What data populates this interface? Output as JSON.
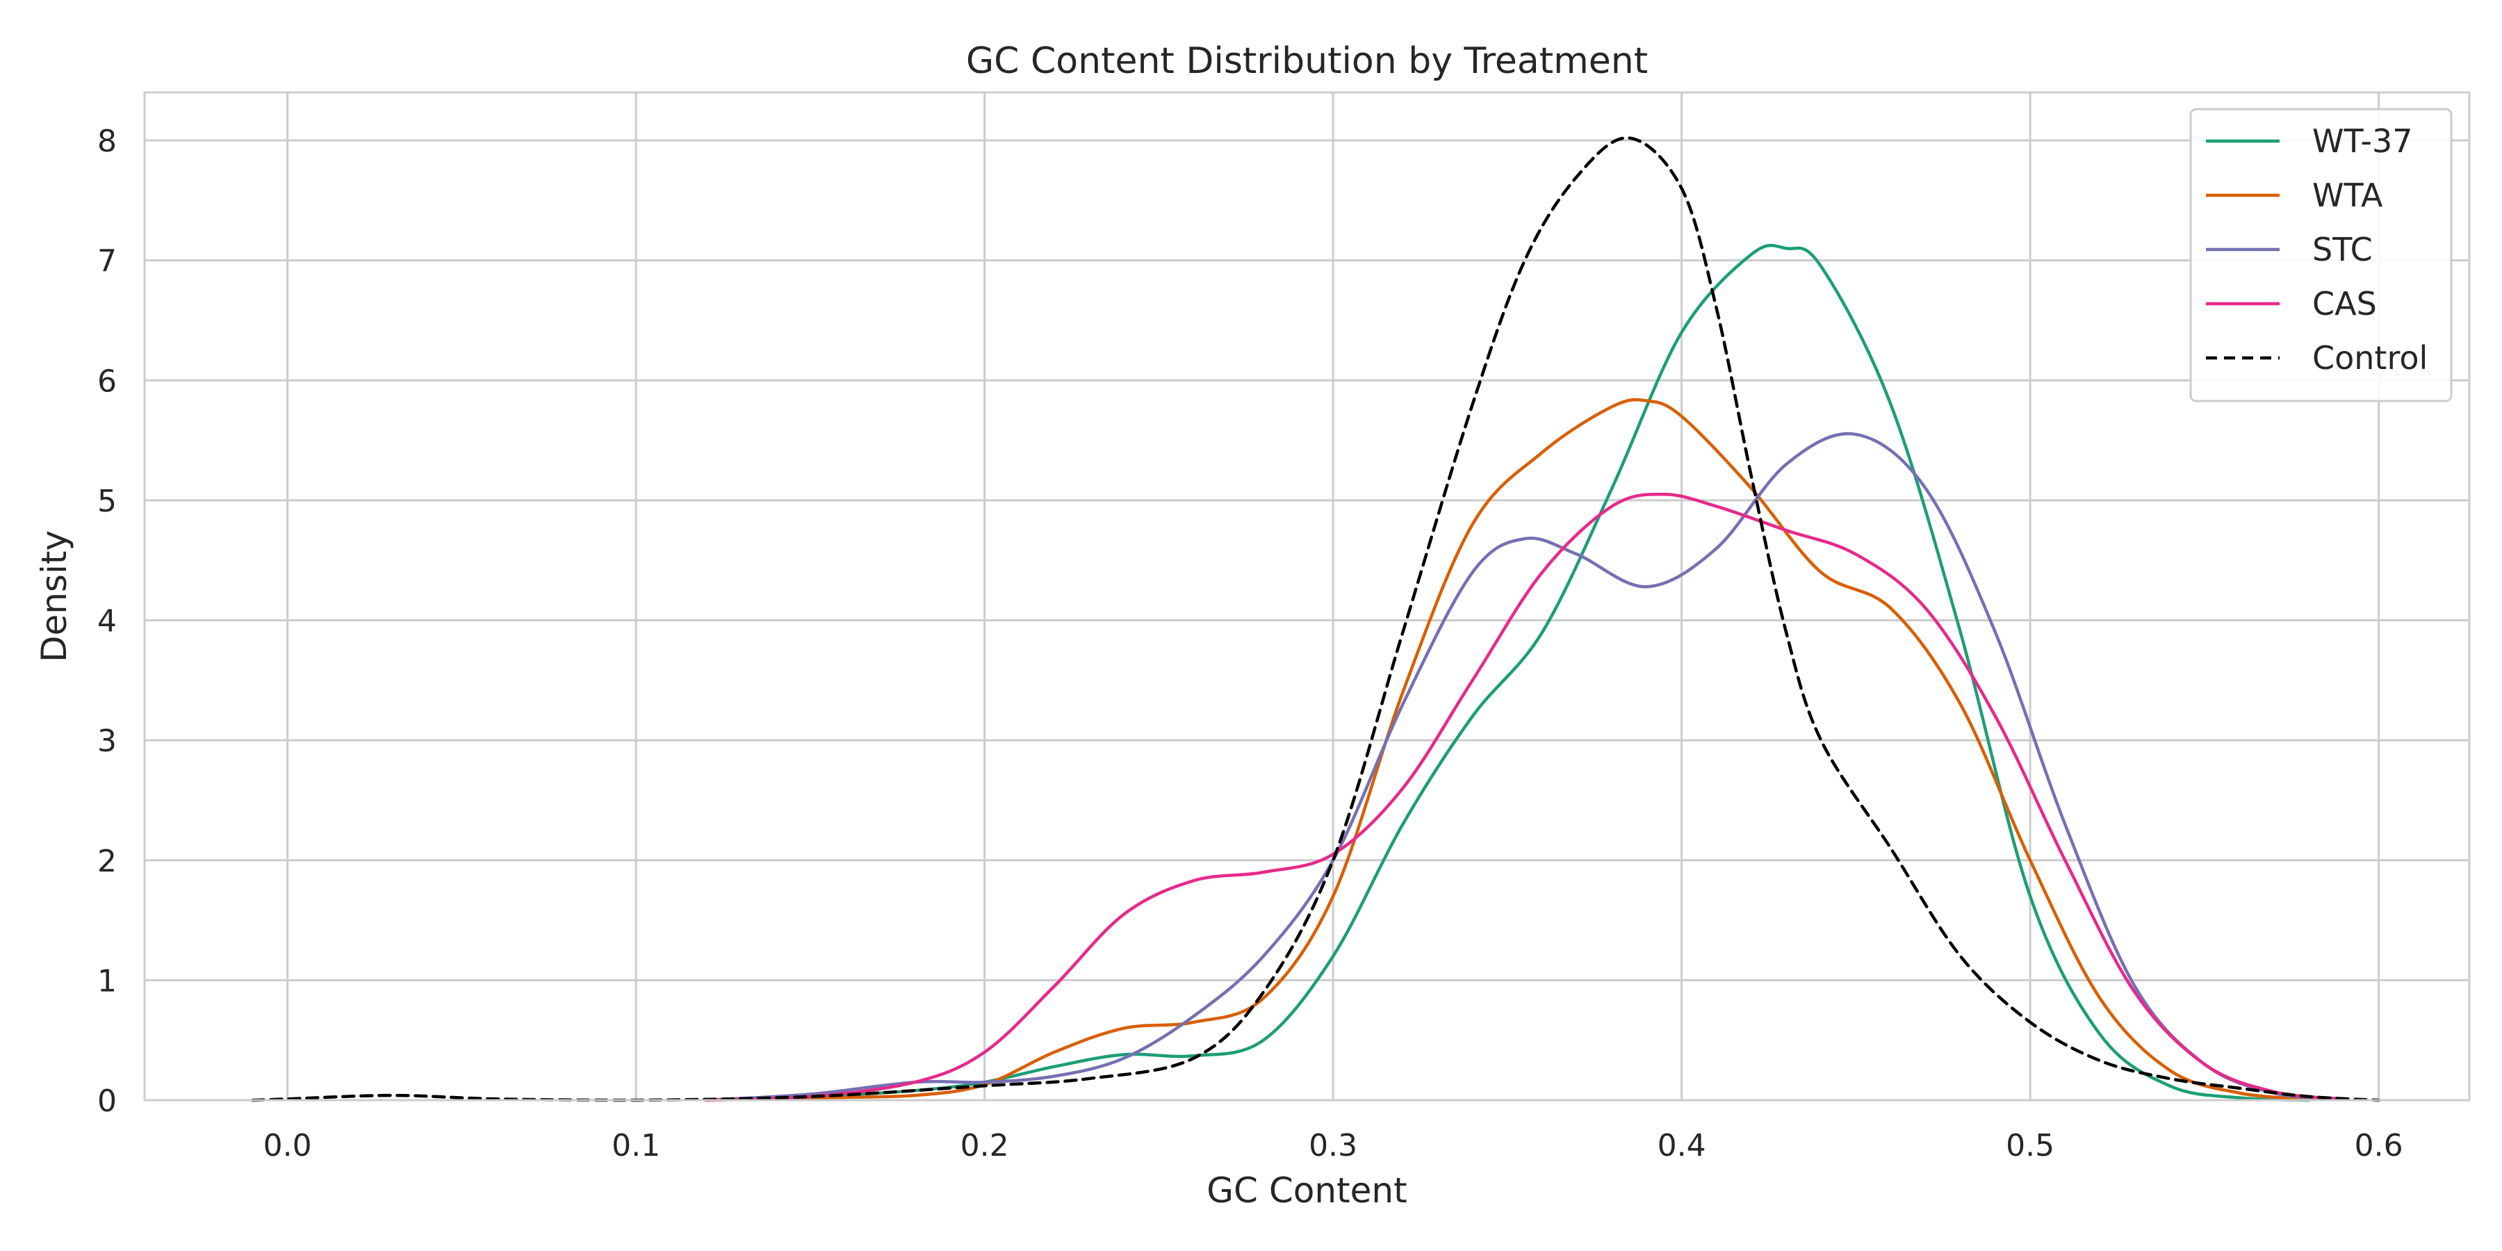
{
  "chart_data": {
    "type": "line",
    "title": "GC Content Distribution by Treatment",
    "xlabel": "GC Content",
    "ylabel": "Density",
    "xlim": [
      -0.041,
      0.626
    ],
    "ylim": [
      0,
      8.4
    ],
    "xticks": [
      0.0,
      0.1,
      0.2,
      0.3,
      0.4,
      0.5,
      0.6
    ],
    "xtick_labels": [
      "0.0",
      "0.1",
      "0.2",
      "0.3",
      "0.4",
      "0.5",
      "0.6"
    ],
    "yticks": [
      0,
      1,
      2,
      3,
      4,
      5,
      6,
      7,
      8
    ],
    "ytick_labels": [
      "0",
      "1",
      "2",
      "3",
      "4",
      "5",
      "6",
      "7",
      "8"
    ],
    "grid": true,
    "legend_position": "top-right",
    "series": [
      {
        "name": "WT-37",
        "color": "#1b9e77",
        "dash": "solid",
        "x": [
          0.12,
          0.15,
          0.18,
          0.2,
          0.22,
          0.24,
          0.26,
          0.28,
          0.3,
          0.32,
          0.34,
          0.36,
          0.38,
          0.4,
          0.42,
          0.43,
          0.44,
          0.46,
          0.48,
          0.5,
          0.52,
          0.54,
          0.56,
          0.58
        ],
        "y": [
          0.0,
          0.03,
          0.08,
          0.15,
          0.28,
          0.38,
          0.37,
          0.5,
          1.2,
          2.3,
          3.2,
          3.9,
          5.1,
          6.4,
          7.05,
          7.1,
          6.95,
          5.8,
          3.9,
          1.7,
          0.55,
          0.12,
          0.02,
          0.0
        ]
      },
      {
        "name": "WTA",
        "color": "#d95f02",
        "dash": "solid",
        "x": [
          0.12,
          0.15,
          0.18,
          0.2,
          0.22,
          0.24,
          0.26,
          0.28,
          0.3,
          0.32,
          0.34,
          0.36,
          0.38,
          0.39,
          0.4,
          0.42,
          0.44,
          0.46,
          0.48,
          0.5,
          0.52,
          0.54,
          0.56,
          0.58
        ],
        "y": [
          0.0,
          0.02,
          0.04,
          0.13,
          0.4,
          0.6,
          0.65,
          0.85,
          1.7,
          3.4,
          4.8,
          5.4,
          5.78,
          5.83,
          5.7,
          5.1,
          4.4,
          4.1,
          3.3,
          2.0,
          0.85,
          0.25,
          0.06,
          0.01
        ]
      },
      {
        "name": "STC",
        "color": "#7570b3",
        "dash": "solid",
        "x": [
          0.12,
          0.15,
          0.18,
          0.2,
          0.22,
          0.24,
          0.26,
          0.28,
          0.3,
          0.32,
          0.34,
          0.355,
          0.37,
          0.39,
          0.41,
          0.43,
          0.45,
          0.47,
          0.49,
          0.51,
          0.53,
          0.55,
          0.57,
          0.59
        ],
        "y": [
          0.0,
          0.05,
          0.15,
          0.15,
          0.2,
          0.35,
          0.7,
          1.2,
          2.0,
          3.3,
          4.4,
          4.68,
          4.55,
          4.28,
          4.6,
          5.3,
          5.55,
          5.1,
          3.9,
          2.3,
          0.95,
          0.3,
          0.06,
          0.01
        ]
      },
      {
        "name": "CAS",
        "color": "#e7298a",
        "dash": "solid",
        "x": [
          0.12,
          0.15,
          0.18,
          0.2,
          0.22,
          0.24,
          0.26,
          0.28,
          0.3,
          0.32,
          0.34,
          0.36,
          0.38,
          0.395,
          0.41,
          0.43,
          0.45,
          0.47,
          0.49,
          0.51,
          0.53,
          0.55,
          0.57,
          0.59
        ],
        "y": [
          0.0,
          0.03,
          0.15,
          0.4,
          0.95,
          1.55,
          1.83,
          1.9,
          2.05,
          2.6,
          3.5,
          4.4,
          4.95,
          5.05,
          4.95,
          4.75,
          4.55,
          4.1,
          3.2,
          2.0,
          0.9,
          0.3,
          0.07,
          0.01
        ]
      },
      {
        "name": "Control",
        "color": "#000000",
        "dash": "dashed",
        "x": [
          -0.01,
          0.0,
          0.03,
          0.06,
          0.1,
          0.15,
          0.2,
          0.23,
          0.26,
          0.28,
          0.3,
          0.32,
          0.34,
          0.355,
          0.37,
          0.385,
          0.4,
          0.41,
          0.42,
          0.43,
          0.44,
          0.46,
          0.48,
          0.5,
          0.52,
          0.54,
          0.56,
          0.58,
          0.6
        ],
        "y": [
          0.0,
          0.01,
          0.04,
          0.01,
          0.0,
          0.03,
          0.12,
          0.18,
          0.35,
          0.9,
          2.0,
          3.9,
          5.8,
          7.0,
          7.7,
          8.02,
          7.6,
          6.6,
          5.2,
          3.9,
          3.0,
          2.1,
          1.2,
          0.65,
          0.33,
          0.18,
          0.1,
          0.03,
          0.0
        ]
      }
    ]
  }
}
